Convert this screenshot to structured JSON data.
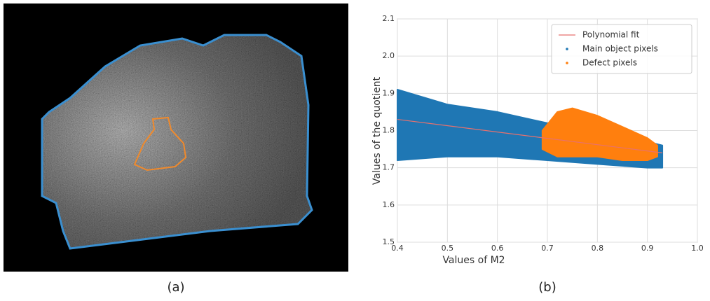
{
  "image_panel": {
    "caption": "(a)"
  },
  "chart_data": {
    "type": "scatter",
    "caption": "(b)",
    "x_label": "Values of M2",
    "y_label": "Values of the quotient",
    "xlim": [
      0.4,
      1.0
    ],
    "ylim": [
      1.5,
      2.1
    ],
    "xticks": [
      0.4,
      0.5,
      0.6,
      0.7,
      0.8,
      0.9,
      {
        "value": 1.0,
        "label": "1.0"
      }
    ],
    "yticks": [
      1.5,
      1.6,
      1.7,
      1.8,
      1.9,
      {
        "value": 2.0,
        "label": "2.0"
      },
      2.1
    ],
    "grid": true,
    "legend": "upper right",
    "series": [
      {
        "name": "Polynomial fit",
        "color": "#e8716d",
        "kind": "line",
        "x": [
          0.4,
          0.93
        ],
        "values": [
          1.83,
          1.74
        ]
      },
      {
        "name": "Main object pixels",
        "color": "#1f77b4",
        "kind": "band",
        "x": [
          0.4,
          0.5,
          0.6,
          0.7,
          0.8,
          0.9,
          0.93
        ],
        "lower": [
          1.72,
          1.73,
          1.73,
          1.72,
          1.71,
          1.7,
          1.7
        ],
        "upper": [
          1.91,
          1.87,
          1.85,
          1.82,
          1.79,
          1.77,
          1.76
        ]
      },
      {
        "name": "Defect pixels",
        "color": "#ff7f0e",
        "kind": "band",
        "x": [
          0.69,
          0.72,
          0.75,
          0.8,
          0.85,
          0.9,
          0.92
        ],
        "lower": [
          1.75,
          1.73,
          1.73,
          1.73,
          1.72,
          1.72,
          1.73
        ],
        "upper": [
          1.8,
          1.85,
          1.86,
          1.84,
          1.81,
          1.78,
          1.76
        ]
      }
    ]
  }
}
